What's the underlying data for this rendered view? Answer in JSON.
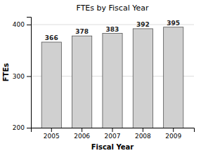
{
  "chart_data": {
    "type": "bar",
    "title": "FTEs by Fiscal Year",
    "x_label": "Fiscal Year",
    "y_label": "FTEs",
    "categories": [
      "2005",
      "2006",
      "2007",
      "2008",
      "2009"
    ],
    "values": [
      366,
      378,
      383,
      392,
      395
    ],
    "color": "#d0d0d0",
    "ylim": [
      200,
      415
    ],
    "yticks": [
      200,
      300,
      400
    ],
    "grid": true,
    "data_labels": true
  }
}
